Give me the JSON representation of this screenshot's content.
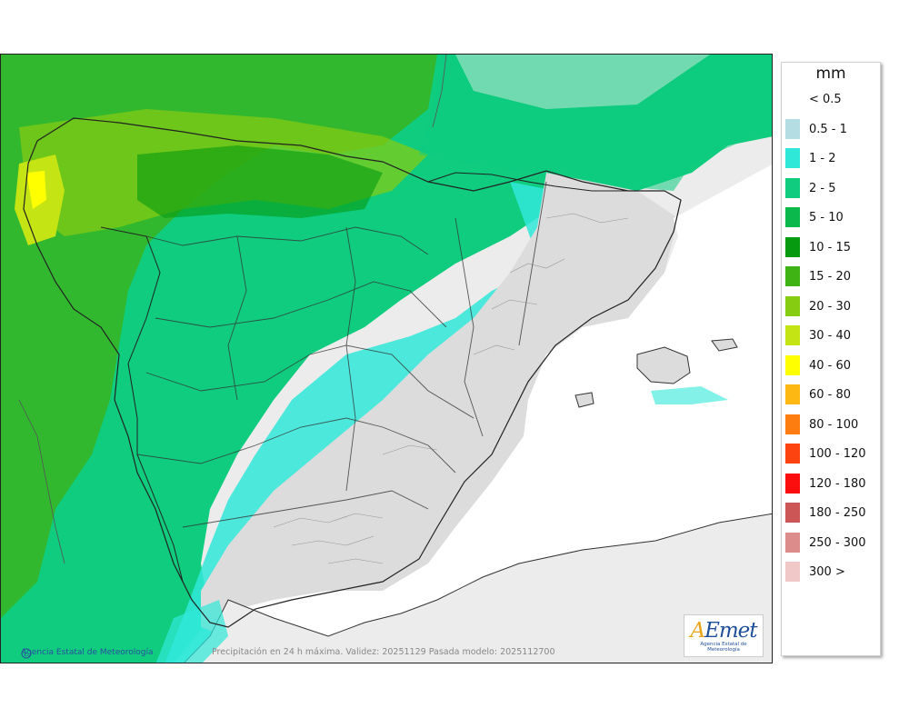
{
  "map": {
    "credit": "Agencia Estatal de Meteorología",
    "caption": "Precipitación en 24 h máxima. Validez: 20251129 Pasada modelo: 2025112700",
    "logo": {
      "word_a": "A",
      "word_b": "Emet",
      "subtitle": "Agencia Estatal de Meteorología"
    }
  },
  "legend": {
    "unit": "mm",
    "items": [
      {
        "label": "< 0.5",
        "color": "#ffffff"
      },
      {
        "label": "0.5 - 1",
        "color": "#b4dde3"
      },
      {
        "label": "1 - 2",
        "color": "#30e8d8"
      },
      {
        "label": "2 - 5",
        "color": "#0fcc7f"
      },
      {
        "label": "5 - 10",
        "color": "#0ab84c"
      },
      {
        "label": "10 - 15",
        "color": "#069a10"
      },
      {
        "label": "15 - 20",
        "color": "#3fb214"
      },
      {
        "label": "20 - 30",
        "color": "#86cc10"
      },
      {
        "label": "30 - 40",
        "color": "#c4e414"
      },
      {
        "label": "40 - 60",
        "color": "#ffff00"
      },
      {
        "label": "60 - 80",
        "color": "#fdb814"
      },
      {
        "label": "80 - 100",
        "color": "#fd7d10"
      },
      {
        "label": "100 - 120",
        "color": "#fd4410"
      },
      {
        "label": "120 - 180",
        "color": "#fd0e0e"
      },
      {
        "label": "180 - 250",
        "color": "#cc5555"
      },
      {
        "label": "250 - 300",
        "color": "#dd8c8c"
      },
      {
        "label": "300 >",
        "color": "#f0c8c8"
      }
    ]
  }
}
